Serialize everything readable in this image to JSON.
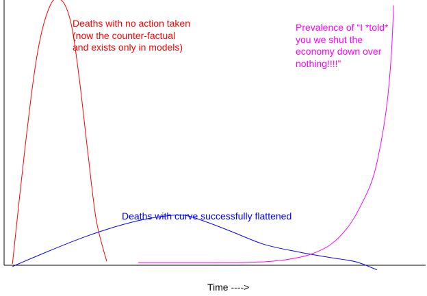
{
  "colors": {
    "no_action": "#ff0000",
    "flattened": "#0000ff",
    "told_you": "#ff00ff",
    "axis": "#000000",
    "background": "#ffffff"
  },
  "chart_data": {
    "type": "line",
    "title": "",
    "xlabel": "Time ---->",
    "ylabel": "",
    "xlim": [
      0,
      100
    ],
    "ylim": [
      0,
      100
    ],
    "grid": false,
    "legend": "none",
    "annotations": {
      "no_action": "Deaths with no action taken\n(now the counter-factual\nand exists only in models)",
      "told_you": "Prevalence of “I *told*\nyou we shut the\neconomy down over\nnothing!!!!”",
      "flattened": "Deaths with curve successfully flattened"
    },
    "series": [
      {
        "key": "no_action",
        "x": [
          2,
          5,
          8,
          11,
          13.7,
          16,
          18,
          20,
          22,
          24.5
        ],
        "y": [
          0,
          45,
          82,
          100,
          102,
          93,
          71,
          43,
          17,
          1
        ]
      },
      {
        "key": "flattened",
        "x": [
          2,
          10,
          18,
          25,
          32,
          38,
          43,
          48,
          54,
          62,
          70,
          78,
          84,
          89
        ],
        "y": [
          -1,
          4.5,
          9.7,
          13.6,
          16.7,
          18.4,
          18.8,
          16.4,
          12.7,
          7.6,
          4.7,
          2.4,
          0.8,
          -2.3
        ]
      },
      {
        "key": "told_you",
        "x": [
          32,
          40,
          50,
          58,
          63,
          68,
          73,
          78,
          82,
          85,
          88,
          90,
          91.5,
          92.5,
          93
        ],
        "y": [
          0.5,
          0.5,
          0.5,
          0.6,
          0.9,
          1.8,
          3.6,
          7.5,
          14,
          22,
          33,
          47,
          63,
          82,
          100
        ]
      }
    ]
  }
}
